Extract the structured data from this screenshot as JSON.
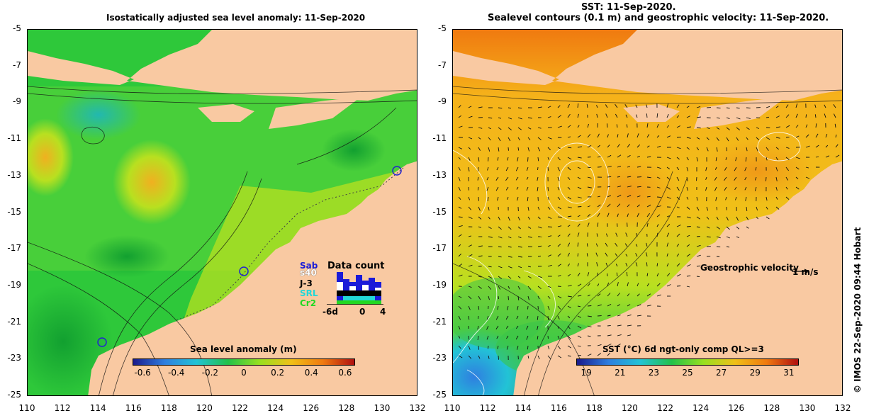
{
  "left_panel": {
    "title": "Isostatically adjusted sea level anomaly: 11-Sep-2020",
    "colorbar": {
      "title": "Sea level anomaly (m)",
      "ticks": [
        "-0.6",
        "-0.4",
        "-0.2",
        "0",
        "0.2",
        "0.4",
        "0.6"
      ],
      "colors": [
        "#1a1a8c",
        "#2f7fe0",
        "#22c3d6",
        "#22c24a",
        "#98e020",
        "#f0c018",
        "#f07a10",
        "#b01010"
      ]
    },
    "data_count": {
      "title": "Data count",
      "satellites": [
        "Sab",
        "s40",
        "J-3",
        "SRL",
        "Cr2"
      ],
      "colors": [
        "#1a1ad8",
        "#ffffff",
        "#000000",
        "#22d8d8",
        "#22d822"
      ],
      "x_ticks": [
        "-6d",
        "0",
        "4"
      ]
    }
  },
  "right_panel": {
    "title_line1": "SST: 11-Sep-2020.",
    "title_line2": "Sealevel contours (0.1 m) and geostrophic velocity: 11-Sep-2020.",
    "colorbar": {
      "title": "SST (°C) 6d ngt-only comp QL>=3",
      "ticks": [
        "19",
        "21",
        "23",
        "25",
        "27",
        "29",
        "31"
      ],
      "colors": [
        "#1a1a8c",
        "#2f7fe0",
        "#22c3d6",
        "#22c24a",
        "#98e020",
        "#f0c018",
        "#f07a10",
        "#b01010"
      ]
    },
    "velocity_legend": {
      "label": "Geostrophic velocity",
      "scale": "1 m/s"
    }
  },
  "axes": {
    "y_ticks": [
      "-5",
      "-7",
      "-9",
      "-11",
      "-13",
      "-15",
      "-17",
      "-19",
      "-21",
      "-23",
      "-25"
    ],
    "x_ticks": [
      "110",
      "112",
      "114",
      "116",
      "118",
      "120",
      "122",
      "124",
      "126",
      "128",
      "130",
      "132"
    ]
  },
  "colors": {
    "land": "#f9c9a2",
    "sla_ocean": "#2ec83a",
    "sst_ocean": "#f5b21a"
  },
  "credit": "© IMOS 22-Sep-2020 09:44 Hobart"
}
